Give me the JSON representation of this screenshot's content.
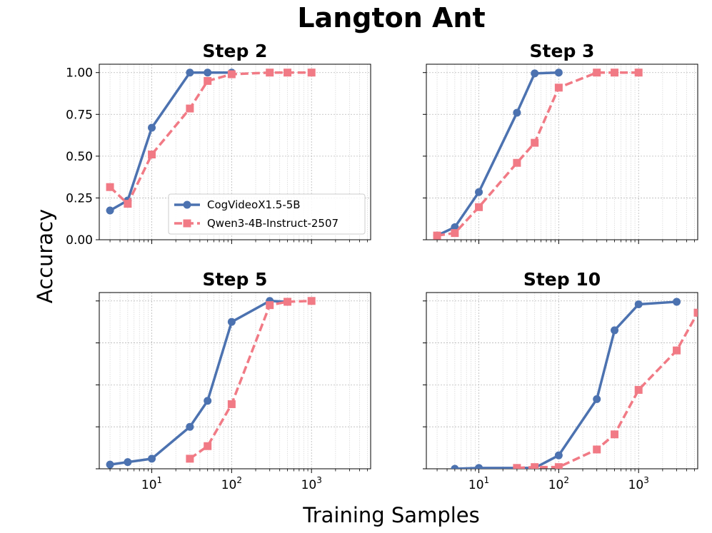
{
  "title": "Langton Ant",
  "xlabel": "Training Samples",
  "ylabel": "Accuracy",
  "colors": {
    "cog": "#4c72b0",
    "qwen": "#f17a85"
  },
  "chart_data": [
    {
      "type": "line",
      "title": "Step 2",
      "xscale": "log",
      "xlim": [
        2.2,
        5500
      ],
      "ylim": [
        0,
        1.05
      ],
      "yticks": [
        "0.00",
        "0.25",
        "0.50",
        "0.75",
        "1.00"
      ],
      "xticks": [
        "10^1",
        "10^2",
        "10^3"
      ],
      "grid": true,
      "legend": "lower-right",
      "series": [
        {
          "name": "CogVideoX1.5-5B",
          "style": "solid",
          "marker": "circle",
          "x": [
            3,
            5,
            10,
            30,
            50,
            100
          ],
          "y": [
            0.175,
            0.235,
            0.67,
            1.0,
            1.0,
            1.0
          ]
        },
        {
          "name": "Qwen3-4B-Instruct-2507",
          "style": "dashed",
          "marker": "square",
          "x": [
            3,
            5,
            10,
            30,
            50,
            100,
            300,
            500,
            1000
          ],
          "y": [
            0.315,
            0.215,
            0.51,
            0.785,
            0.95,
            0.99,
            1.0,
            1.0,
            1.0
          ]
        }
      ]
    },
    {
      "type": "line",
      "title": "Step 3",
      "xscale": "log",
      "xlim": [
        2.2,
        5500
      ],
      "ylim": [
        0,
        1.05
      ],
      "grid": true,
      "series": [
        {
          "name": "CogVideoX1.5-5B",
          "style": "solid",
          "marker": "circle",
          "x": [
            3,
            5,
            10,
            30,
            50,
            100
          ],
          "y": [
            0.025,
            0.075,
            0.285,
            0.76,
            0.995,
            1.0
          ]
        },
        {
          "name": "Qwen3-4B-Instruct-2507",
          "style": "dashed",
          "marker": "square",
          "x": [
            3,
            5,
            10,
            30,
            50,
            100,
            300,
            500,
            1000
          ],
          "y": [
            0.025,
            0.04,
            0.195,
            0.46,
            0.58,
            0.91,
            1.0,
            1.0,
            1.0
          ]
        }
      ]
    },
    {
      "type": "line",
      "title": "Step 5",
      "xscale": "log",
      "xlim": [
        2.2,
        5500
      ],
      "ylim": [
        0,
        1.05
      ],
      "grid": true,
      "series": [
        {
          "name": "CogVideoX1.5-5B",
          "style": "solid",
          "marker": "circle",
          "x": [
            3,
            5,
            10,
            30,
            50,
            100,
            300,
            500
          ],
          "y": [
            0.025,
            0.04,
            0.06,
            0.25,
            0.405,
            0.875,
            1.0,
            0.995
          ]
        },
        {
          "name": "Qwen3-4B-Instruct-2507",
          "style": "dashed",
          "marker": "square",
          "x": [
            30,
            50,
            100,
            300,
            500,
            1000
          ],
          "y": [
            0.06,
            0.135,
            0.385,
            0.975,
            0.995,
            1.0
          ]
        }
      ]
    },
    {
      "type": "line",
      "title": "Step 10",
      "xscale": "log",
      "xlim": [
        2.2,
        5500
      ],
      "ylim": [
        0,
        1.05
      ],
      "grid": true,
      "series": [
        {
          "name": "CogVideoX1.5-5B",
          "style": "solid",
          "marker": "circle",
          "x": [
            5,
            10,
            30,
            50,
            100,
            300,
            500,
            1000,
            3000
          ],
          "y": [
            0.0,
            0.005,
            0.005,
            0.005,
            0.08,
            0.415,
            0.825,
            0.98,
            0.995
          ]
        },
        {
          "name": "Qwen3-4B-Instruct-2507",
          "style": "dashed",
          "marker": "square",
          "x": [
            30,
            50,
            100,
            300,
            500,
            1000,
            3000,
            5500
          ],
          "y": [
            0.005,
            0.01,
            0.01,
            0.115,
            0.205,
            0.47,
            0.705,
            0.93
          ]
        }
      ]
    }
  ]
}
